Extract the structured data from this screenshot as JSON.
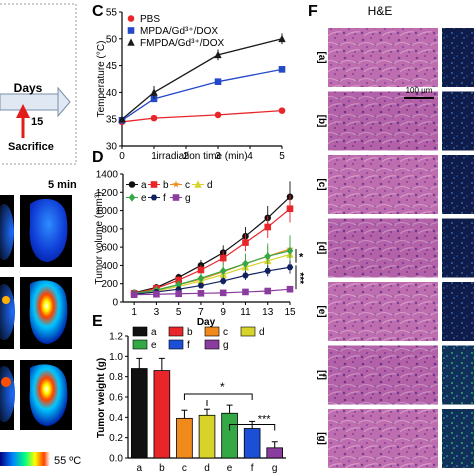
{
  "panel_letters": [
    "C",
    "D",
    "E",
    "F"
  ],
  "left_fragment": {
    "timeline_label": "Days",
    "day_15": "15",
    "sacrifice_label": "Sacrifice",
    "thermal_time_label": "5 min",
    "colorbar_max": "55 ºC"
  },
  "histology": {
    "header": "H&E",
    "scale_bar": "100 μm",
    "row_labels": [
      "[a]",
      "[b]",
      "[c]",
      "[d]",
      "[e]",
      "[f]",
      "[g]"
    ],
    "colors": {
      "he_base": "#b65fa8",
      "he_light": "#e2b6d8",
      "he_dark": "#6a2d80",
      "fluor": "#1a2a5a"
    }
  },
  "chart_data": [
    {
      "id": "C",
      "type": "line",
      "xlabel": "irradiation time (min)",
      "ylabel": "Temperature (°C)",
      "x": [
        0,
        1,
        3,
        5
      ],
      "xlim": [
        0,
        5
      ],
      "ylim": [
        30,
        55
      ],
      "xticks": [
        "0",
        "1",
        "2",
        "3",
        "4",
        "5"
      ],
      "yticks": [
        "30",
        "35",
        "40",
        "45",
        "50",
        "55"
      ],
      "legend_position": "top-left",
      "series": [
        {
          "name": "PBS",
          "color": "#e8262a",
          "marker": "circle",
          "values": [
            34.5,
            35.2,
            35.8,
            36.6
          ],
          "errors": [
            0.3,
            0.3,
            0.3,
            0.4
          ]
        },
        {
          "name": "MPDA/Gd³⁺/DOX",
          "color": "#2348c8",
          "marker": "square",
          "values": [
            34.8,
            38.8,
            42.0,
            44.3
          ],
          "errors": [
            0.3,
            0.5,
            0.5,
            0.5
          ]
        },
        {
          "name": "FMPDA/Gd³⁺/DOX",
          "color": "#1a1a1a",
          "marker": "triangle",
          "values": [
            35.0,
            40.0,
            47.0,
            50.0
          ],
          "errors": [
            0.3,
            1.2,
            1.0,
            1.0
          ]
        }
      ]
    },
    {
      "id": "D",
      "type": "line",
      "xlabel": "Day",
      "ylabel": "Tumor volume (mm³)",
      "x": [
        1,
        3,
        5,
        7,
        9,
        11,
        13,
        15
      ],
      "xlim": [
        0,
        15
      ],
      "ylim": [
        0,
        1400
      ],
      "xticks": [
        "1",
        "3",
        "5",
        "7",
        "9",
        "11",
        "13",
        "15"
      ],
      "yticks": [
        "0",
        "200",
        "400",
        "600",
        "800",
        "1000",
        "1200",
        "1400"
      ],
      "legend_position": "top-left",
      "significance": [
        "*",
        "***"
      ],
      "series": [
        {
          "name": "a",
          "color": "#111111",
          "marker": "circle",
          "values": [
            100,
            160,
            270,
            400,
            540,
            720,
            920,
            1150
          ],
          "errors": [
            15,
            25,
            40,
            60,
            80,
            100,
            130,
            170
          ]
        },
        {
          "name": "b",
          "color": "#e8262a",
          "marker": "square",
          "values": [
            95,
            150,
            240,
            350,
            480,
            650,
            820,
            1020
          ],
          "errors": [
            15,
            25,
            40,
            55,
            75,
            95,
            120,
            150
          ]
        },
        {
          "name": "c",
          "color": "#f08a1c",
          "marker": "star",
          "values": [
            95,
            130,
            190,
            250,
            330,
            420,
            500,
            580
          ],
          "errors": [
            12,
            20,
            30,
            50,
            70,
            90,
            110,
            130
          ]
        },
        {
          "name": "d",
          "color": "#d7d32a",
          "marker": "triangle",
          "values": [
            90,
            120,
            170,
            230,
            300,
            380,
            450,
            520
          ],
          "errors": [
            12,
            20,
            30,
            45,
            60,
            80,
            100,
            120
          ]
        },
        {
          "name": "e",
          "color": "#34a844",
          "marker": "diamond",
          "values": [
            95,
            130,
            190,
            260,
            340,
            420,
            500,
            560
          ],
          "errors": [
            12,
            20,
            35,
            60,
            90,
            110,
            140,
            170
          ]
        },
        {
          "name": "f",
          "color": "#12215e",
          "marker": "hexagon",
          "values": [
            85,
            110,
            140,
            180,
            230,
            290,
            340,
            380
          ],
          "errors": [
            10,
            15,
            20,
            30,
            40,
            50,
            60,
            70
          ]
        },
        {
          "name": "g",
          "color": "#8a3d9e",
          "marker": "square",
          "values": [
            80,
            85,
            90,
            95,
            100,
            110,
            120,
            140
          ],
          "errors": [
            8,
            10,
            12,
            15,
            18,
            20,
            25,
            30
          ]
        }
      ]
    },
    {
      "id": "E",
      "type": "bar",
      "xlabel": "",
      "ylabel": "Tumor weight (g)",
      "categories": [
        "a",
        "b",
        "c",
        "d",
        "e",
        "f",
        "g"
      ],
      "values": [
        0.88,
        0.86,
        0.39,
        0.42,
        0.44,
        0.29,
        0.1
      ],
      "errors": [
        0.1,
        0.12,
        0.08,
        0.06,
        0.08,
        0.07,
        0.06
      ],
      "colors": [
        "#111111",
        "#e8262a",
        "#f08a1c",
        "#d7d32a",
        "#34a844",
        "#1a4fd6",
        "#8a3d9e"
      ],
      "ylim": [
        0,
        1.2
      ],
      "yticks": [
        "0.0",
        "0.2",
        "0.4",
        "0.6",
        "0.8",
        "1.0",
        "1.2"
      ],
      "legend_position": "top",
      "significance": [
        "*",
        "***"
      ]
    }
  ]
}
